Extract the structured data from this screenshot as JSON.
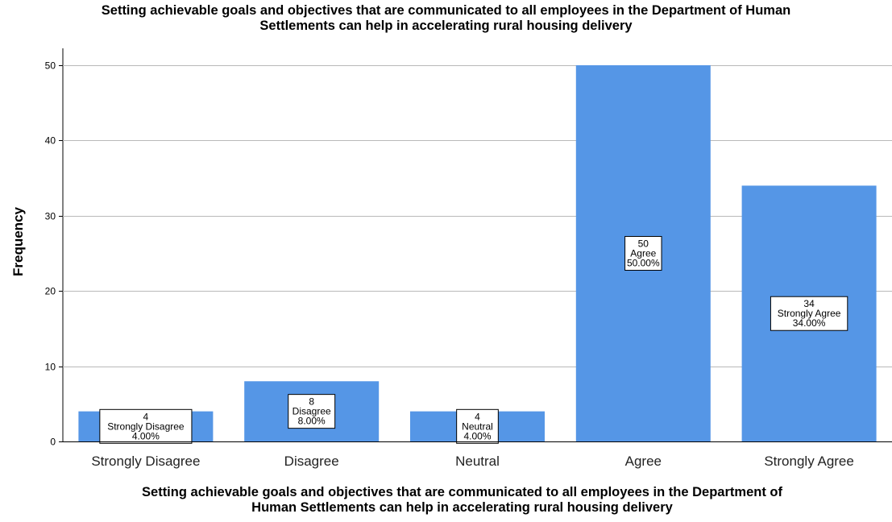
{
  "chart_data": {
    "type": "bar",
    "title": "Setting achievable goals and objectives that are communicated to all employees in the Department of Human Settlements can help in accelerating rural housing delivery",
    "title_lines": [
      "Setting achievable goals and objectives that are communicated to all employees in the Department of Human",
      "Settlements can help in accelerating rural housing delivery"
    ],
    "xlabel": "Setting achievable goals and objectives that are communicated to all employees in the Department of Human Settlements can help in accelerating rural housing delivery",
    "xlabel_lines": [
      "Setting achievable goals and objectives that are communicated to all employees in the Department of",
      "Human Settlements can help in accelerating rural housing delivery"
    ],
    "ylabel": "Frequency",
    "categories": [
      "Strongly Disagree",
      "Disagree",
      "Neutral",
      "Agree",
      "Strongly Agree"
    ],
    "values": [
      4,
      8,
      4,
      50,
      34
    ],
    "percent_labels": [
      "4.00%",
      "8.00%",
      "4.00%",
      "50.00%",
      "34.00%"
    ],
    "ylim": [
      0,
      52
    ],
    "yticks": [
      0,
      10,
      20,
      30,
      40,
      50
    ],
    "grid": true,
    "bar_color": "#5596e6"
  }
}
